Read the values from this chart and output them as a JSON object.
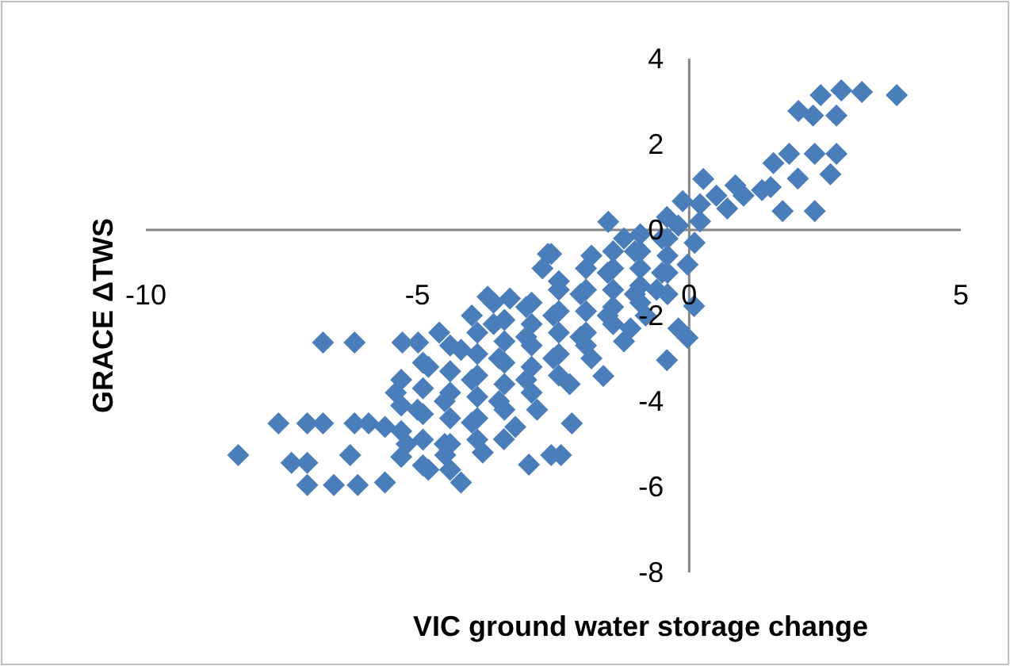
{
  "chart_data": {
    "type": "scatter",
    "xlabel": "VIC ground water storage change",
    "ylabel": "GRACE ΔTWS",
    "xlim": [
      -10,
      5
    ],
    "ylim": [
      -8,
      4
    ],
    "xticks": [
      -10,
      -5,
      0,
      5
    ],
    "yticks": [
      -8,
      -6,
      -4,
      -2,
      0,
      2,
      4
    ],
    "grid": false,
    "marker": "diamond",
    "series": [
      {
        "color": "#4a7ebb",
        "x": [
          -8.3,
          -6.74,
          -6.16,
          -5.28,
          -4.99,
          -7.56,
          -7.03,
          -6.74,
          -6.16,
          -5.9,
          -7.32,
          -7.03,
          -7.03,
          -6.54,
          -6.24,
          -6.1,
          -4.49,
          -2.36,
          -3.41,
          -3.71,
          -2.54,
          -2.6,
          -1.49,
          -0.41,
          -0.12,
          0.26,
          0.85,
          1.34,
          1.55,
          1.84,
          2.31,
          2.71,
          2.6,
          2.31,
          1.72,
          2.01,
          2.28,
          2.71,
          2.42,
          2.8,
          3.18,
          3.82,
          -0.03,
          0.09,
          -0.03,
          -0.41,
          -0.2,
          -1.08,
          -1.58,
          -2.16,
          -2.54,
          -2.95,
          -4.5,
          -4,
          -3.5,
          -3,
          -2.5,
          -2,
          -1.5,
          -1,
          -0.5,
          -4.5,
          -4,
          -3.5,
          -3,
          -2.5,
          -2,
          -1.5,
          -1,
          -0.5,
          -4.8,
          -4.2,
          -3.6,
          -3,
          -2.4,
          -1.8,
          -1.2,
          -5,
          -5.2,
          -4.8,
          -4.2,
          -5.6,
          -3.8,
          -3.2,
          -2.8,
          -2.2,
          -1.8,
          -1.2,
          -0.8,
          -0.6,
          -3.3,
          -2.7,
          -4.6,
          -5.4,
          -5.6,
          -4,
          -3.6,
          0.2,
          0.5,
          1,
          1.5,
          2,
          0.7,
          -0.2,
          0.1,
          0.2,
          -5.3,
          -5.3,
          -5.3,
          -5.3,
          -4.9,
          -4.9,
          -4.9,
          -4.9,
          -4.9,
          -4.4,
          -4.4,
          -4.4,
          -4.4,
          -4.4,
          -4.4,
          -3.9,
          -3.9,
          -3.9,
          -3.9,
          -3.9,
          -3.9,
          -3.4,
          -3.4,
          -3.4,
          -3.4,
          -3.4,
          -2.9,
          -2.9,
          -2.9,
          -2.9,
          -2.9,
          -2.4,
          -2.4,
          -2.4,
          -2.4,
          -2.4,
          -1.9,
          -1.9,
          -1.9,
          -1.9,
          -1.9,
          -1.4,
          -1.4,
          -1.4,
          -1.4,
          -1.4,
          -0.9,
          -0.9,
          -0.9,
          -0.9,
          -0.9,
          -0.4,
          -0.4,
          -0.4,
          -0.4
        ],
        "values": [
          -5.26,
          -2.63,
          -2.63,
          -2.63,
          -2.63,
          -4.52,
          -4.52,
          -4.52,
          -4.52,
          -4.52,
          -5.44,
          -5.44,
          -5.96,
          -5.96,
          -5.26,
          -5.96,
          -5.26,
          -5.26,
          -4.89,
          -1.56,
          -0.56,
          -0.56,
          0.19,
          0.3,
          0.67,
          1.19,
          1.04,
          0.93,
          1.56,
          1.78,
          1.78,
          1.78,
          1.3,
          0.44,
          0.44,
          2.78,
          2.67,
          2.67,
          3.15,
          3.26,
          3.22,
          3.15,
          -0.81,
          -1.78,
          -2.52,
          -3.04,
          -2.3,
          -2.3,
          -3.41,
          -4.52,
          -5.26,
          -5.48,
          -4,
          -3.5,
          -3,
          -2.5,
          -2,
          -1.5,
          -1,
          -0.5,
          -0.2,
          -5,
          -4.5,
          -4,
          -3.5,
          -3,
          -2.5,
          -2,
          -1.5,
          -1,
          -3.2,
          -2.8,
          -2.2,
          -1.8,
          -1.2,
          -0.6,
          -0.2,
          -4.2,
          -5,
          -5.6,
          -5.9,
          -5.9,
          -5.2,
          -4.6,
          -4.2,
          -3.6,
          -3,
          -2.6,
          -2,
          -1.4,
          -1.6,
          -0.9,
          -2.4,
          -3.8,
          -4.6,
          -2,
          -1.7,
          0.6,
          0.8,
          0.8,
          1,
          1.2,
          0.5,
          0.1,
          -0.3,
          0.2,
          -3.5,
          -4.1,
          -4.7,
          -5.3,
          -3.1,
          -3.7,
          -4.3,
          -4.9,
          -5.5,
          -2.7,
          -3.3,
          -3.8,
          -4.4,
          -5,
          -5.6,
          -2.4,
          -2.9,
          -3.4,
          -3.9,
          -4.4,
          -4.9,
          -2.1,
          -2.6,
          -3.1,
          -3.6,
          -4.2,
          -1.7,
          -2.2,
          -2.7,
          -3.2,
          -3.8,
          -1.4,
          -1.9,
          -2.4,
          -2.9,
          -3.4,
          -0.9,
          -1.4,
          -1.9,
          -2.4,
          -2.7,
          -0.5,
          -0.9,
          -1.4,
          -1.8,
          -2.2,
          -0.1,
          -0.5,
          -0.9,
          -1.3,
          -1.7,
          -0.2,
          -0.6,
          -1,
          -1.5
        ]
      }
    ]
  }
}
